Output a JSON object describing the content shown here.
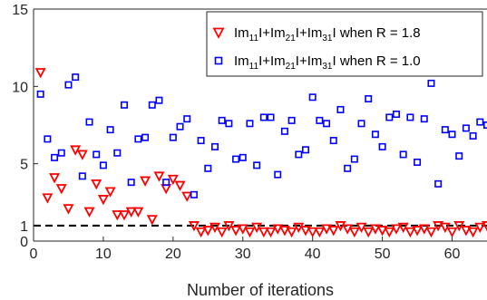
{
  "chart_data": {
    "type": "scatter",
    "title": "",
    "xlabel": "Number of iterations",
    "ylabel": "",
    "xlim": [
      0,
      65
    ],
    "ylim": [
      0,
      15
    ],
    "xticks": [
      0,
      10,
      20,
      30,
      40,
      50,
      60
    ],
    "yticks": [
      0,
      1,
      5,
      10,
      15
    ],
    "xtick_labels": [
      "0",
      "10",
      "20",
      "30",
      "40",
      "50",
      "60"
    ],
    "ytick_labels": [
      "0",
      "1",
      "5",
      "10",
      "15"
    ],
    "grid": false,
    "legend_position": "top-right",
    "reference_line": {
      "y": 1,
      "style": "dashed",
      "color": "#000000"
    },
    "series": [
      {
        "name": "|m11|+|m21|+|m31| when R = 1.8",
        "legend_parts": [
          {
            "t": "Im",
            "sub": false
          },
          {
            "t": "11",
            "sub": true
          },
          {
            "t": "I+Im",
            "sub": false
          },
          {
            "t": "21",
            "sub": true
          },
          {
            "t": "I+Im",
            "sub": false
          },
          {
            "t": "31",
            "sub": true
          },
          {
            "t": "I when R = 1.8",
            "sub": false
          }
        ],
        "marker": "triangle-down",
        "color": "#ff0000",
        "x": [
          1,
          2,
          3,
          4,
          5,
          6,
          7,
          8,
          9,
          10,
          11,
          12,
          13,
          14,
          15,
          16,
          17,
          18,
          19,
          20,
          21,
          22,
          23,
          24,
          25,
          26,
          27,
          28,
          29,
          30,
          31,
          32,
          33,
          34,
          35,
          36,
          37,
          38,
          39,
          40,
          41,
          42,
          43,
          44,
          45,
          46,
          47,
          48,
          49,
          50,
          51,
          52,
          53,
          54,
          55,
          56,
          57,
          58,
          59,
          60,
          61,
          62,
          63,
          64,
          65
        ],
        "y": [
          10.9,
          2.8,
          4.1,
          3.4,
          2.1,
          5.9,
          5.6,
          1.9,
          3.7,
          2.7,
          3.2,
          1.7,
          1.7,
          1.9,
          1.9,
          3.9,
          1.4,
          4.2,
          3.4,
          4.0,
          3.6,
          2.9,
          1.0,
          0.6,
          0.7,
          0.9,
          0.6,
          1.0,
          0.7,
          0.8,
          0.6,
          0.9,
          0.6,
          0.6,
          0.8,
          0.7,
          0.6,
          0.9,
          0.7,
          0.6,
          0.6,
          0.8,
          0.7,
          1.0,
          0.8,
          0.6,
          0.9,
          0.6,
          0.8,
          0.7,
          0.6,
          0.8,
          0.9,
          0.6,
          0.7,
          0.8,
          0.6,
          1.0,
          0.9,
          0.6,
          1.0,
          0.7,
          0.6,
          0.9,
          1.0
        ]
      },
      {
        "name": "|m11|+|m21|+|m31| when R = 1.0",
        "legend_parts": [
          {
            "t": "Im",
            "sub": false
          },
          {
            "t": "11",
            "sub": true
          },
          {
            "t": "I+Im",
            "sub": false
          },
          {
            "t": "21",
            "sub": true
          },
          {
            "t": "I+Im",
            "sub": false
          },
          {
            "t": "31",
            "sub": true
          },
          {
            "t": "I when R = 1.0",
            "sub": false
          }
        ],
        "marker": "square",
        "color": "#0000ff",
        "x": [
          1,
          2,
          3,
          4,
          5,
          6,
          7,
          8,
          9,
          10,
          11,
          12,
          13,
          14,
          15,
          16,
          17,
          18,
          19,
          20,
          21,
          22,
          23,
          24,
          25,
          26,
          27,
          28,
          29,
          30,
          31,
          32,
          33,
          34,
          35,
          36,
          37,
          38,
          39,
          40,
          41,
          42,
          43,
          44,
          45,
          46,
          47,
          48,
          49,
          50,
          51,
          52,
          53,
          54,
          55,
          56,
          57,
          58,
          59,
          60,
          61,
          62,
          63,
          64,
          65
        ],
        "y": [
          9.5,
          6.6,
          5.4,
          5.7,
          10.1,
          10.6,
          4.2,
          7.7,
          5.6,
          4.9,
          7.2,
          5.7,
          8.8,
          3.8,
          6.6,
          6.7,
          8.8,
          9.1,
          3.8,
          6.7,
          7.4,
          7.9,
          3.0,
          6.5,
          4.7,
          6.1,
          7.8,
          7.6,
          5.3,
          5.4,
          7.6,
          4.9,
          8.0,
          8.0,
          4.3,
          7.1,
          7.8,
          5.6,
          5.9,
          9.3,
          7.8,
          7.6,
          6.5,
          8.5,
          4.7,
          5.3,
          7.6,
          9.2,
          6.9,
          6.1,
          8.0,
          8.2,
          5.6,
          8.0,
          5.1,
          7.9,
          10.2,
          3.7,
          7.2,
          6.9,
          5.5,
          7.3,
          6.8,
          7.7,
          7.5
        ]
      }
    ]
  }
}
